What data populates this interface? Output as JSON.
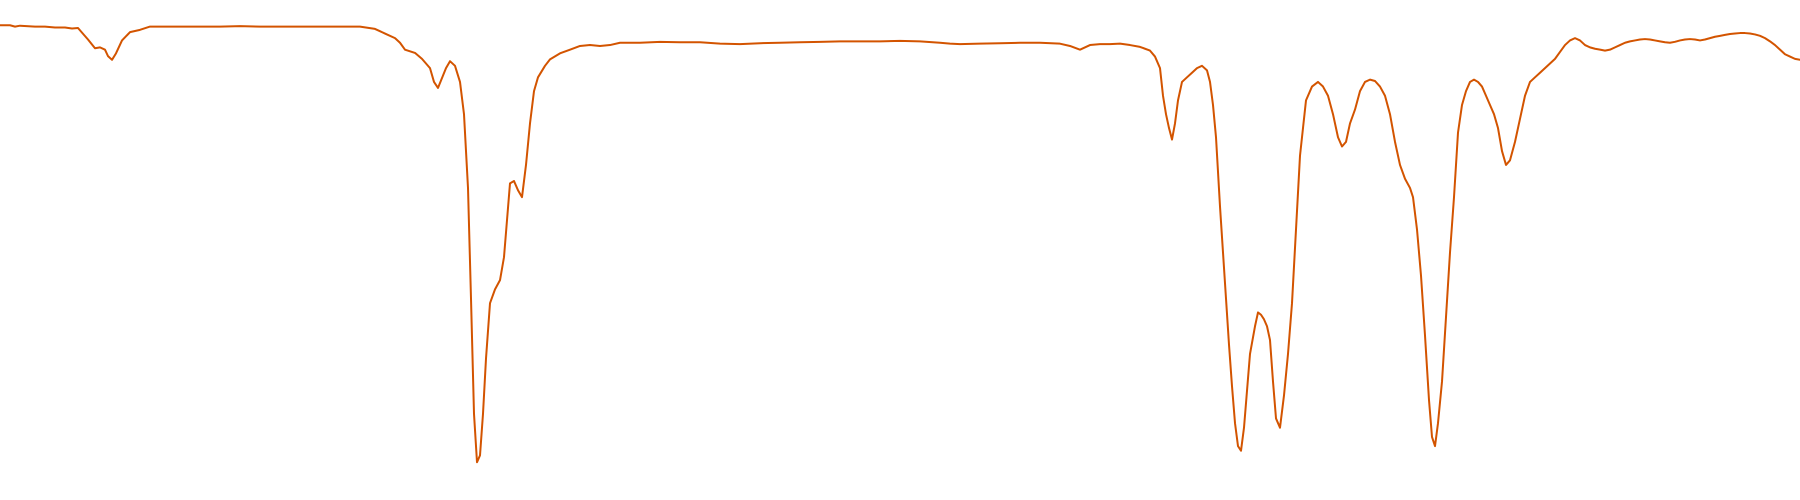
{
  "chart_data": {
    "type": "line",
    "title": "",
    "xlabel": "",
    "ylabel": "",
    "grid": false,
    "legend": "none",
    "xlim": [
      0,
      1800
    ],
    "ylim": [
      0,
      1
    ],
    "series": [
      {
        "color": "#d35400",
        "points": [
          [
            0,
            0.993
          ],
          [
            10,
            0.993
          ],
          [
            15,
            0.99
          ],
          [
            20,
            0.992
          ],
          [
            35,
            0.99
          ],
          [
            45,
            0.99
          ],
          [
            55,
            0.988
          ],
          [
            65,
            0.988
          ],
          [
            72,
            0.986
          ],
          [
            78,
            0.987
          ],
          [
            82,
            0.977
          ],
          [
            88,
            0.962
          ],
          [
            95,
            0.943
          ],
          [
            100,
            0.945
          ],
          [
            105,
            0.94
          ],
          [
            108,
            0.926
          ],
          [
            112,
            0.918
          ],
          [
            116,
            0.932
          ],
          [
            122,
            0.96
          ],
          [
            130,
            0.978
          ],
          [
            140,
            0.983
          ],
          [
            150,
            0.99
          ],
          [
            160,
            0.99
          ],
          [
            170,
            0.99
          ],
          [
            180,
            0.99
          ],
          [
            190,
            0.99
          ],
          [
            200,
            0.99
          ],
          [
            220,
            0.99
          ],
          [
            240,
            0.991
          ],
          [
            260,
            0.99
          ],
          [
            280,
            0.99
          ],
          [
            300,
            0.99
          ],
          [
            320,
            0.99
          ],
          [
            340,
            0.99
          ],
          [
            360,
            0.99
          ],
          [
            375,
            0.985
          ],
          [
            385,
            0.975
          ],
          [
            395,
            0.965
          ],
          [
            400,
            0.955
          ],
          [
            405,
            0.94
          ],
          [
            415,
            0.933
          ],
          [
            422,
            0.92
          ],
          [
            430,
            0.9
          ],
          [
            434,
            0.87
          ],
          [
            438,
            0.857
          ],
          [
            441,
            0.873
          ],
          [
            446,
            0.9
          ],
          [
            450,
            0.915
          ],
          [
            455,
            0.905
          ],
          [
            460,
            0.87
          ],
          [
            464,
            0.8
          ],
          [
            468,
            0.64
          ],
          [
            471,
            0.4
          ],
          [
            474,
            0.15
          ],
          [
            477,
            0.045
          ],
          [
            480,
            0.06
          ],
          [
            483,
            0.15
          ],
          [
            486,
            0.27
          ],
          [
            490,
            0.39
          ],
          [
            495,
            0.42
          ],
          [
            500,
            0.44
          ],
          [
            504,
            0.49
          ],
          [
            507,
            0.57
          ],
          [
            510,
            0.65
          ],
          [
            514,
            0.655
          ],
          [
            518,
            0.635
          ],
          [
            522,
            0.62
          ],
          [
            526,
            0.69
          ],
          [
            530,
            0.78
          ],
          [
            534,
            0.85
          ],
          [
            538,
            0.88
          ],
          [
            545,
            0.905
          ],
          [
            550,
            0.919
          ],
          [
            560,
            0.932
          ],
          [
            570,
            0.94
          ],
          [
            580,
            0.948
          ],
          [
            590,
            0.95
          ],
          [
            600,
            0.948
          ],
          [
            610,
            0.95
          ],
          [
            620,
            0.955
          ],
          [
            630,
            0.955
          ],
          [
            640,
            0.955
          ],
          [
            660,
            0.957
          ],
          [
            680,
            0.956
          ],
          [
            700,
            0.956
          ],
          [
            720,
            0.953
          ],
          [
            740,
            0.952
          ],
          [
            760,
            0.954
          ],
          [
            780,
            0.955
          ],
          [
            800,
            0.956
          ],
          [
            820,
            0.957
          ],
          [
            840,
            0.958
          ],
          [
            860,
            0.958
          ],
          [
            880,
            0.958
          ],
          [
            900,
            0.959
          ],
          [
            920,
            0.958
          ],
          [
            940,
            0.955
          ],
          [
            950,
            0.953
          ],
          [
            960,
            0.952
          ],
          [
            980,
            0.953
          ],
          [
            1000,
            0.954
          ],
          [
            1020,
            0.955
          ],
          [
            1040,
            0.955
          ],
          [
            1060,
            0.953
          ],
          [
            1070,
            0.948
          ],
          [
            1080,
            0.94
          ],
          [
            1090,
            0.95
          ],
          [
            1100,
            0.952
          ],
          [
            1110,
            0.952
          ],
          [
            1120,
            0.953
          ],
          [
            1130,
            0.95
          ],
          [
            1140,
            0.946
          ],
          [
            1150,
            0.938
          ],
          [
            1155,
            0.925
          ],
          [
            1160,
            0.9
          ],
          [
            1163,
            0.84
          ],
          [
            1166,
            0.8
          ],
          [
            1169,
            0.77
          ],
          [
            1172,
            0.745
          ],
          [
            1175,
            0.78
          ],
          [
            1178,
            0.83
          ],
          [
            1182,
            0.87
          ],
          [
            1187,
            0.88
          ],
          [
            1192,
            0.89
          ],
          [
            1197,
            0.9
          ],
          [
            1202,
            0.905
          ],
          [
            1207,
            0.895
          ],
          [
            1210,
            0.87
          ],
          [
            1213,
            0.82
          ],
          [
            1216,
            0.75
          ],
          [
            1220,
            0.6
          ],
          [
            1223,
            0.5
          ],
          [
            1226,
            0.4
          ],
          [
            1229,
            0.3
          ],
          [
            1232,
            0.21
          ],
          [
            1235,
            0.13
          ],
          [
            1238,
            0.08
          ],
          [
            1241,
            0.07
          ],
          [
            1244,
            0.12
          ],
          [
            1247,
            0.2
          ],
          [
            1250,
            0.28
          ],
          [
            1255,
            0.34
          ],
          [
            1258,
            0.37
          ],
          [
            1261,
            0.365
          ],
          [
            1264,
            0.355
          ],
          [
            1267,
            0.34
          ],
          [
            1270,
            0.31
          ],
          [
            1273,
            0.22
          ],
          [
            1276,
            0.14
          ],
          [
            1280,
            0.12
          ],
          [
            1284,
            0.19
          ],
          [
            1288,
            0.28
          ],
          [
            1292,
            0.39
          ],
          [
            1296,
            0.55
          ],
          [
            1300,
            0.71
          ],
          [
            1306,
            0.83
          ],
          [
            1312,
            0.86
          ],
          [
            1318,
            0.87
          ],
          [
            1323,
            0.86
          ],
          [
            1328,
            0.84
          ],
          [
            1333,
            0.8
          ],
          [
            1338,
            0.75
          ],
          [
            1342,
            0.73
          ],
          [
            1346,
            0.74
          ],
          [
            1350,
            0.78
          ],
          [
            1355,
            0.81
          ],
          [
            1360,
            0.85
          ],
          [
            1365,
            0.87
          ],
          [
            1370,
            0.875
          ],
          [
            1375,
            0.872
          ],
          [
            1380,
            0.86
          ],
          [
            1385,
            0.84
          ],
          [
            1390,
            0.8
          ],
          [
            1395,
            0.74
          ],
          [
            1400,
            0.69
          ],
          [
            1405,
            0.66
          ],
          [
            1410,
            0.64
          ],
          [
            1413,
            0.62
          ],
          [
            1417,
            0.55
          ],
          [
            1421,
            0.45
          ],
          [
            1425,
            0.32
          ],
          [
            1429,
            0.18
          ],
          [
            1432,
            0.1
          ],
          [
            1435,
            0.08
          ],
          [
            1438,
            0.13
          ],
          [
            1442,
            0.22
          ],
          [
            1446,
            0.36
          ],
          [
            1450,
            0.5
          ],
          [
            1454,
            0.62
          ],
          [
            1458,
            0.76
          ],
          [
            1462,
            0.82
          ],
          [
            1466,
            0.85
          ],
          [
            1470,
            0.87
          ],
          [
            1474,
            0.875
          ],
          [
            1478,
            0.87
          ],
          [
            1482,
            0.86
          ],
          [
            1486,
            0.84
          ],
          [
            1490,
            0.82
          ],
          [
            1494,
            0.8
          ],
          [
            1498,
            0.77
          ],
          [
            1502,
            0.72
          ],
          [
            1506,
            0.69
          ],
          [
            1510,
            0.7
          ],
          [
            1515,
            0.74
          ],
          [
            1520,
            0.79
          ],
          [
            1525,
            0.84
          ],
          [
            1530,
            0.87
          ],
          [
            1535,
            0.88
          ],
          [
            1540,
            0.89
          ],
          [
            1545,
            0.9
          ],
          [
            1550,
            0.91
          ],
          [
            1555,
            0.92
          ],
          [
            1560,
            0.935
          ],
          [
            1565,
            0.95
          ],
          [
            1570,
            0.96
          ],
          [
            1575,
            0.965
          ],
          [
            1580,
            0.96
          ],
          [
            1585,
            0.95
          ],
          [
            1590,
            0.945
          ],
          [
            1595,
            0.942
          ],
          [
            1600,
            0.94
          ],
          [
            1605,
            0.938
          ],
          [
            1610,
            0.94
          ],
          [
            1615,
            0.945
          ],
          [
            1620,
            0.95
          ],
          [
            1625,
            0.955
          ],
          [
            1630,
            0.958
          ],
          [
            1635,
            0.96
          ],
          [
            1640,
            0.962
          ],
          [
            1645,
            0.963
          ],
          [
            1650,
            0.962
          ],
          [
            1655,
            0.96
          ],
          [
            1660,
            0.958
          ],
          [
            1665,
            0.956
          ],
          [
            1670,
            0.955
          ],
          [
            1675,
            0.957
          ],
          [
            1680,
            0.96
          ],
          [
            1685,
            0.962
          ],
          [
            1690,
            0.963
          ],
          [
            1695,
            0.962
          ],
          [
            1700,
            0.96
          ],
          [
            1705,
            0.962
          ],
          [
            1710,
            0.965
          ],
          [
            1715,
            0.968
          ],
          [
            1720,
            0.97
          ],
          [
            1725,
            0.972
          ],
          [
            1730,
            0.974
          ],
          [
            1735,
            0.975
          ],
          [
            1740,
            0.976
          ],
          [
            1745,
            0.976
          ],
          [
            1750,
            0.975
          ],
          [
            1755,
            0.973
          ],
          [
            1760,
            0.97
          ],
          [
            1765,
            0.965
          ],
          [
            1770,
            0.958
          ],
          [
            1775,
            0.95
          ],
          [
            1780,
            0.94
          ],
          [
            1785,
            0.93
          ],
          [
            1790,
            0.925
          ],
          [
            1795,
            0.92
          ],
          [
            1800,
            0.918
          ]
        ]
      }
    ]
  }
}
